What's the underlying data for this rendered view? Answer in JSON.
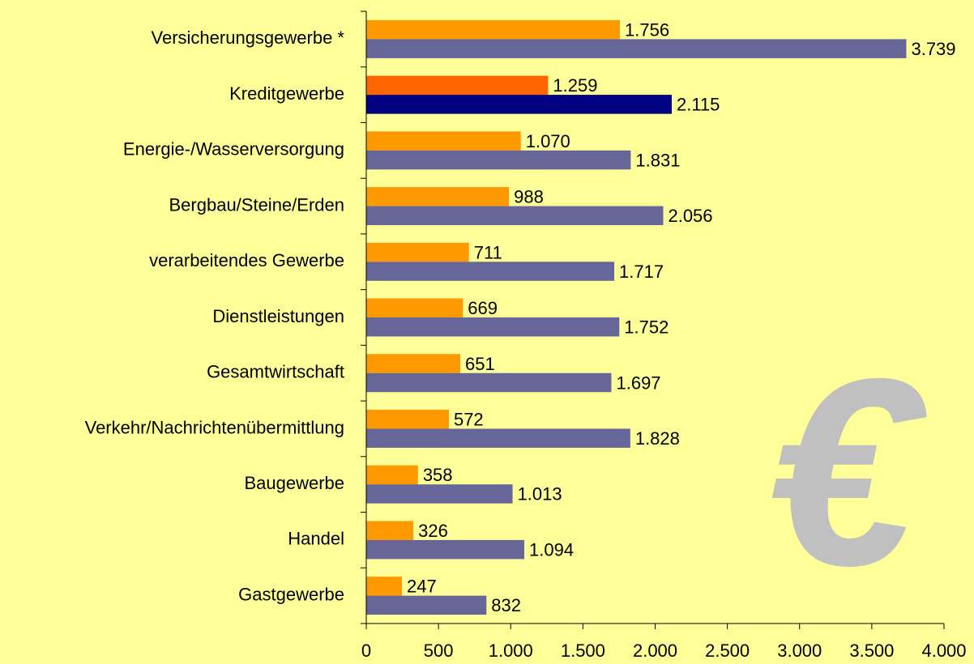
{
  "chart_data": {
    "type": "barh",
    "watermark": "€",
    "categories": [
      "Versicherungsgewerbe *",
      "Kreditgewerbe",
      "Energie-/Wasserversorgung",
      "Bergbau/Steine/Erden",
      "verarbeitendes Gewerbe",
      "Dienstleistungen",
      "Gesamtwirtschaft",
      "Verkehr/Nachrichtenübermittlung",
      "Baugewerbe",
      "Handel",
      "Gastgewerbe"
    ],
    "series": [
      {
        "color": "#ff9900",
        "colors": [
          "#ff9900",
          "#ff6600",
          "#ff9900",
          "#ff9900",
          "#ff9900",
          "#ff9900",
          "#ff9900",
          "#ff9900",
          "#ff9900",
          "#ff9900",
          "#ff9900"
        ],
        "values": [
          1756,
          1259,
          1070,
          988,
          711,
          669,
          651,
          572,
          358,
          326,
          247
        ],
        "value_labels": [
          "1.756",
          "1.259",
          "1.070",
          "988",
          "711",
          "669",
          "651",
          "572",
          "358",
          "326",
          "247"
        ]
      },
      {
        "color": "#666699",
        "colors": [
          "#666699",
          "#000080",
          "#666699",
          "#666699",
          "#666699",
          "#666699",
          "#666699",
          "#666699",
          "#666699",
          "#666699",
          "#666699"
        ],
        "values": [
          3739,
          2115,
          1831,
          2056,
          1717,
          1752,
          1697,
          1828,
          1013,
          1094,
          832
        ],
        "value_labels": [
          "3.739",
          "2.115",
          "1.831",
          "2.056",
          "1.717",
          "1.752",
          "1.697",
          "1.828",
          "1.013",
          "1.094",
          "832"
        ]
      }
    ],
    "xlim": [
      0,
      4000
    ],
    "xticks": [
      0,
      500,
      {
        "value": 1000,
        "label": "1.000"
      },
      {
        "value": 1500,
        "label": "1.500"
      },
      {
        "value": 2000,
        "label": "2.000"
      },
      {
        "value": 2500,
        "label": "2.500"
      },
      {
        "value": 3000,
        "label": "3.000"
      },
      {
        "value": 3500,
        "label": "3.500"
      },
      {
        "value": 4000,
        "label": "4.000"
      }
    ]
  }
}
